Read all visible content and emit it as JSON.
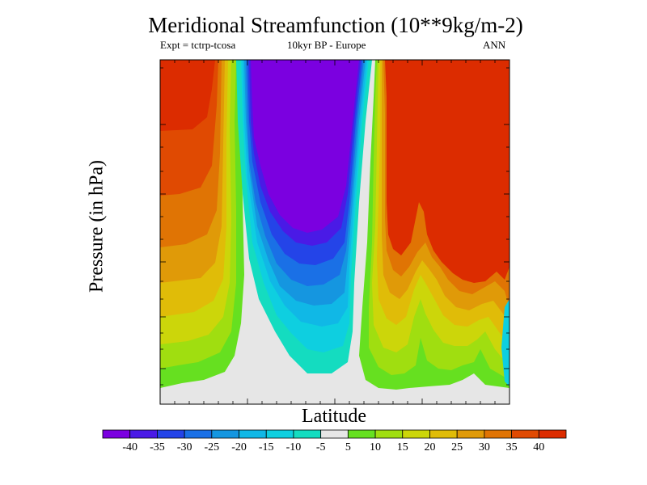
{
  "chart_data": {
    "type": "filled-contour",
    "title": "Meridional Streamfunction (10**9kg/m-2)",
    "experiment": "Expt = tctrp-tcosa",
    "period": "10kyr BP - Europe",
    "season": "ANN",
    "xlabel": "Latitude",
    "ylabel": "Pressure (in hPa)",
    "colorbar": {
      "levels": [
        -40,
        -35,
        -30,
        -25,
        -20,
        -15,
        -10,
        -5,
        5,
        10,
        15,
        20,
        25,
        30,
        35,
        40
      ],
      "tick_labels": [
        "-40",
        "-35",
        "-30",
        "-25",
        "-20",
        "-15",
        "-10",
        "-5",
        "5",
        "10",
        "15",
        "20",
        "25",
        "30",
        "35",
        "40"
      ],
      "colors": [
        "#7b00e0",
        "#4a1ae6",
        "#2444e8",
        "#1a70e6",
        "#1596e0",
        "#10b8e6",
        "#0ecfe0",
        "#14dcc0",
        "#e6e6e6",
        "#66e020",
        "#a0de10",
        "#ccd60a",
        "#e0bc08",
        "#e09a08",
        "#e07404",
        "#e04a02",
        "#dc2c00"
      ]
    }
  }
}
